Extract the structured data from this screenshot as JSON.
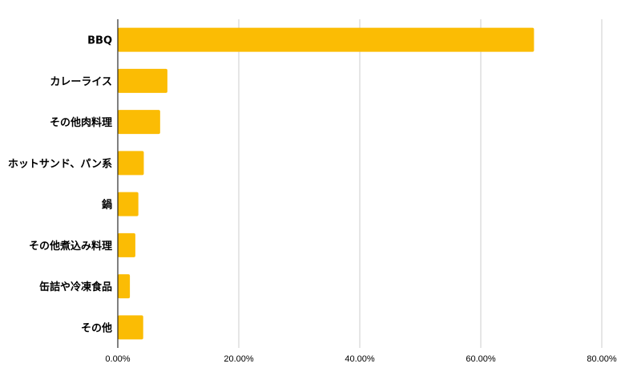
{
  "chart_data": {
    "type": "bar",
    "orientation": "horizontal",
    "title": "",
    "xlabel": "",
    "ylabel": "",
    "categories": [
      "BBQ",
      "カレーライス",
      "その他肉料理",
      "ホットサンド、パン系",
      "鍋",
      "その他煮込み料理",
      "缶詰や冷凍食品",
      "その他"
    ],
    "values": [
      68.8,
      8.2,
      7.0,
      4.3,
      3.4,
      2.9,
      2.0,
      4.2
    ],
    "xlim": [
      0,
      80
    ],
    "xticks": [
      0,
      20,
      40,
      60,
      80
    ],
    "xtick_labels": [
      "0.00%",
      "20.00%",
      "40.00%",
      "60.00%",
      "80.00%"
    ],
    "grid": "vertical",
    "legend": "none",
    "bar_color": "#FBBC04",
    "grid_color": "#CCCCCC",
    "axis_color": "#000000"
  }
}
